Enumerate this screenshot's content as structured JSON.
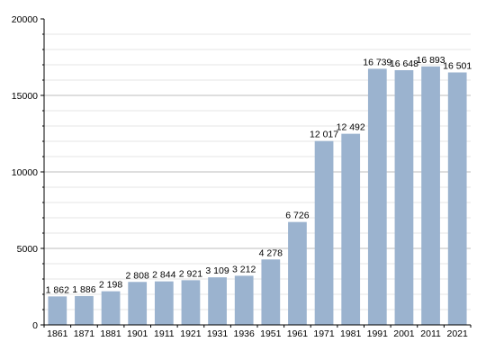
{
  "chart_data": {
    "type": "bar",
    "categories": [
      "1861",
      "1871",
      "1881",
      "1901",
      "1911",
      "1921",
      "1931",
      "1936",
      "1951",
      "1961",
      "1971",
      "1981",
      "1991",
      "2001",
      "2011",
      "2021"
    ],
    "values": [
      1862,
      1886,
      2198,
      2808,
      2844,
      2921,
      3109,
      3212,
      4278,
      6726,
      12017,
      12492,
      16739,
      16648,
      16893,
      16501
    ],
    "value_labels": [
      "1 862",
      "1 886",
      "2 198",
      "2 808",
      "2 844",
      "2 921",
      "3 109",
      "3 212",
      "4 278",
      "6 726",
      "12 017",
      "12 492",
      "16 739",
      "16 648",
      "16 893",
      "16 501"
    ],
    "y_ticks": [
      0,
      5000,
      10000,
      15000,
      20000
    ],
    "y_tick_labels": [
      "0",
      "5000",
      "10000",
      "15000",
      "20000"
    ],
    "ylim": [
      0,
      20000
    ],
    "grid": true,
    "colors": {
      "bar": "#9bb3cf",
      "grid": "#dddddd",
      "axis": "#000000"
    }
  }
}
